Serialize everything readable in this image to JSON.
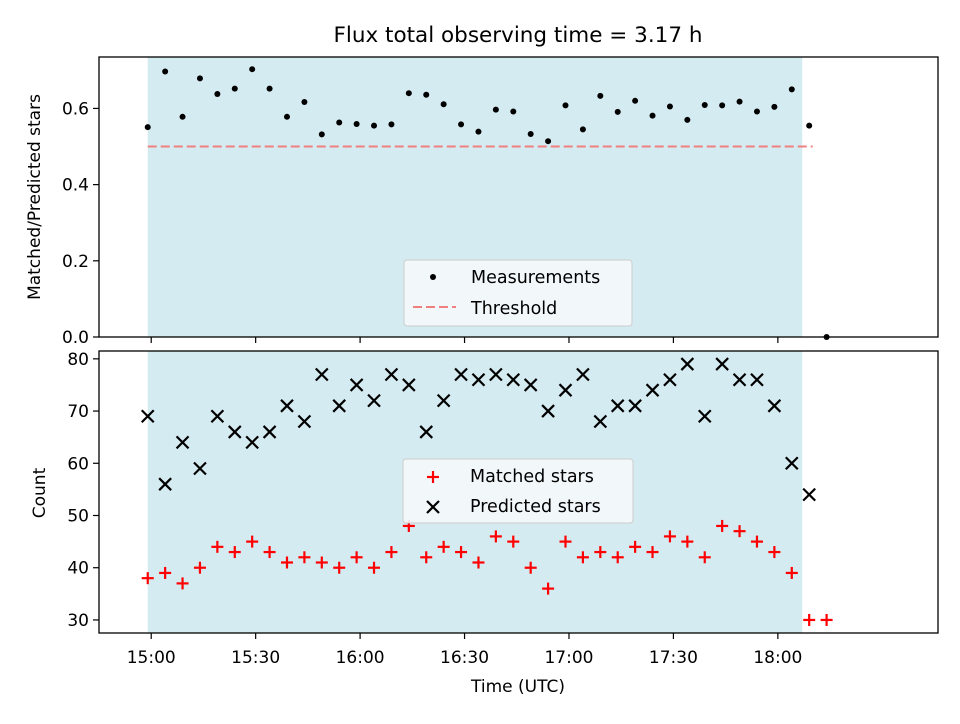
{
  "title": "Flux total observing time = 3.17 h",
  "colors": {
    "span": "#d4ebf1",
    "threshold": "#f08080",
    "measurement": "#000000",
    "matched": "#ff0000",
    "predicted": "#000000"
  },
  "chart_data": [
    {
      "type": "scatter",
      "ylabel": "Matched/Predicted stars",
      "ylim": [
        0,
        0.735
      ],
      "xlim": [
        "14:45",
        "18:46"
      ],
      "yticks": [
        0.0,
        0.2,
        0.4,
        0.6
      ],
      "legend_placement": "lower-center",
      "shaded_span": [
        "14:59",
        "18:07"
      ],
      "threshold": {
        "name": "Threshold",
        "value": 0.5,
        "x_range": [
          "14:59",
          "18:10"
        ]
      },
      "series": [
        {
          "name": "Measurements",
          "x": [
            "14:59",
            "15:04",
            "15:09",
            "15:14",
            "15:19",
            "15:24",
            "15:29",
            "15:34",
            "15:39",
            "15:44",
            "15:49",
            "15:54",
            "15:59",
            "16:04",
            "16:09",
            "16:14",
            "16:19",
            "16:24",
            "16:29",
            "16:34",
            "16:39",
            "16:44",
            "16:49",
            "16:54",
            "16:59",
            "17:04",
            "17:09",
            "17:14",
            "17:19",
            "17:24",
            "17:29",
            "17:34",
            "17:39",
            "17:44",
            "17:49",
            "17:54",
            "17:59",
            "18:04",
            "18:09",
            "18:14"
          ],
          "values": [
            0.551,
            0.697,
            0.578,
            0.679,
            0.638,
            0.652,
            0.703,
            0.652,
            0.578,
            0.617,
            0.532,
            0.563,
            0.559,
            0.555,
            0.558,
            0.64,
            0.636,
            0.611,
            0.558,
            0.539,
            0.597,
            0.592,
            0.533,
            0.514,
            0.608,
            0.545,
            0.633,
            0.591,
            0.62,
            0.581,
            0.605,
            0.57,
            0.609,
            0.608,
            0.618,
            0.592,
            0.604,
            0.65,
            0.555,
            0.0
          ]
        }
      ]
    },
    {
      "type": "scatter",
      "xlabel": "Time (UTC)",
      "ylabel": "Count",
      "ylim": [
        27.5,
        81.5
      ],
      "xlim": [
        "14:45",
        "18:46"
      ],
      "xticks": [
        "15:00",
        "15:30",
        "16:00",
        "16:30",
        "17:00",
        "17:30",
        "18:00"
      ],
      "yticks": [
        30,
        40,
        50,
        60,
        70,
        80
      ],
      "legend_placement": "center",
      "shaded_span": [
        "14:59",
        "18:07"
      ],
      "series": [
        {
          "name": "Matched stars",
          "x": [
            "14:59",
            "15:04",
            "15:09",
            "15:14",
            "15:19",
            "15:24",
            "15:29",
            "15:34",
            "15:39",
            "15:44",
            "15:49",
            "15:54",
            "15:59",
            "16:04",
            "16:09",
            "16:14",
            "16:19",
            "16:24",
            "16:29",
            "16:34",
            "16:39",
            "16:44",
            "16:49",
            "16:54",
            "16:59",
            "17:04",
            "17:09",
            "17:14",
            "17:19",
            "17:24",
            "17:29",
            "17:34",
            "17:39",
            "17:44",
            "17:49",
            "17:54",
            "17:59",
            "18:04",
            "18:09",
            "18:14"
          ],
          "values": [
            38,
            39,
            37,
            40,
            44,
            43,
            45,
            43,
            41,
            42,
            41,
            40,
            42,
            40,
            43,
            48,
            42,
            44,
            43,
            41,
            46,
            45,
            40,
            36,
            45,
            42,
            43,
            42,
            44,
            43,
            46,
            45,
            42,
            48,
            47,
            45,
            43,
            39,
            30,
            30
          ]
        },
        {
          "name": "Predicted stars",
          "x": [
            "14:59",
            "15:04",
            "15:09",
            "15:14",
            "15:19",
            "15:24",
            "15:29",
            "15:34",
            "15:39",
            "15:44",
            "15:49",
            "15:54",
            "15:59",
            "16:04",
            "16:09",
            "16:14",
            "16:19",
            "16:24",
            "16:29",
            "16:34",
            "16:39",
            "16:44",
            "16:49",
            "16:54",
            "16:59",
            "17:04",
            "17:09",
            "17:14",
            "17:19",
            "17:24",
            "17:29",
            "17:34",
            "17:39",
            "17:44",
            "17:49",
            "17:54",
            "17:59",
            "18:04",
            "18:09"
          ],
          "values": [
            69,
            56,
            64,
            59,
            69,
            66,
            64,
            66,
            71,
            68,
            77,
            71,
            75,
            72,
            77,
            75,
            66,
            72,
            77,
            76,
            77,
            76,
            75,
            70,
            74,
            77,
            68,
            71,
            71,
            74,
            76,
            79,
            69,
            79,
            76,
            76,
            71,
            60,
            54
          ]
        }
      ]
    }
  ]
}
